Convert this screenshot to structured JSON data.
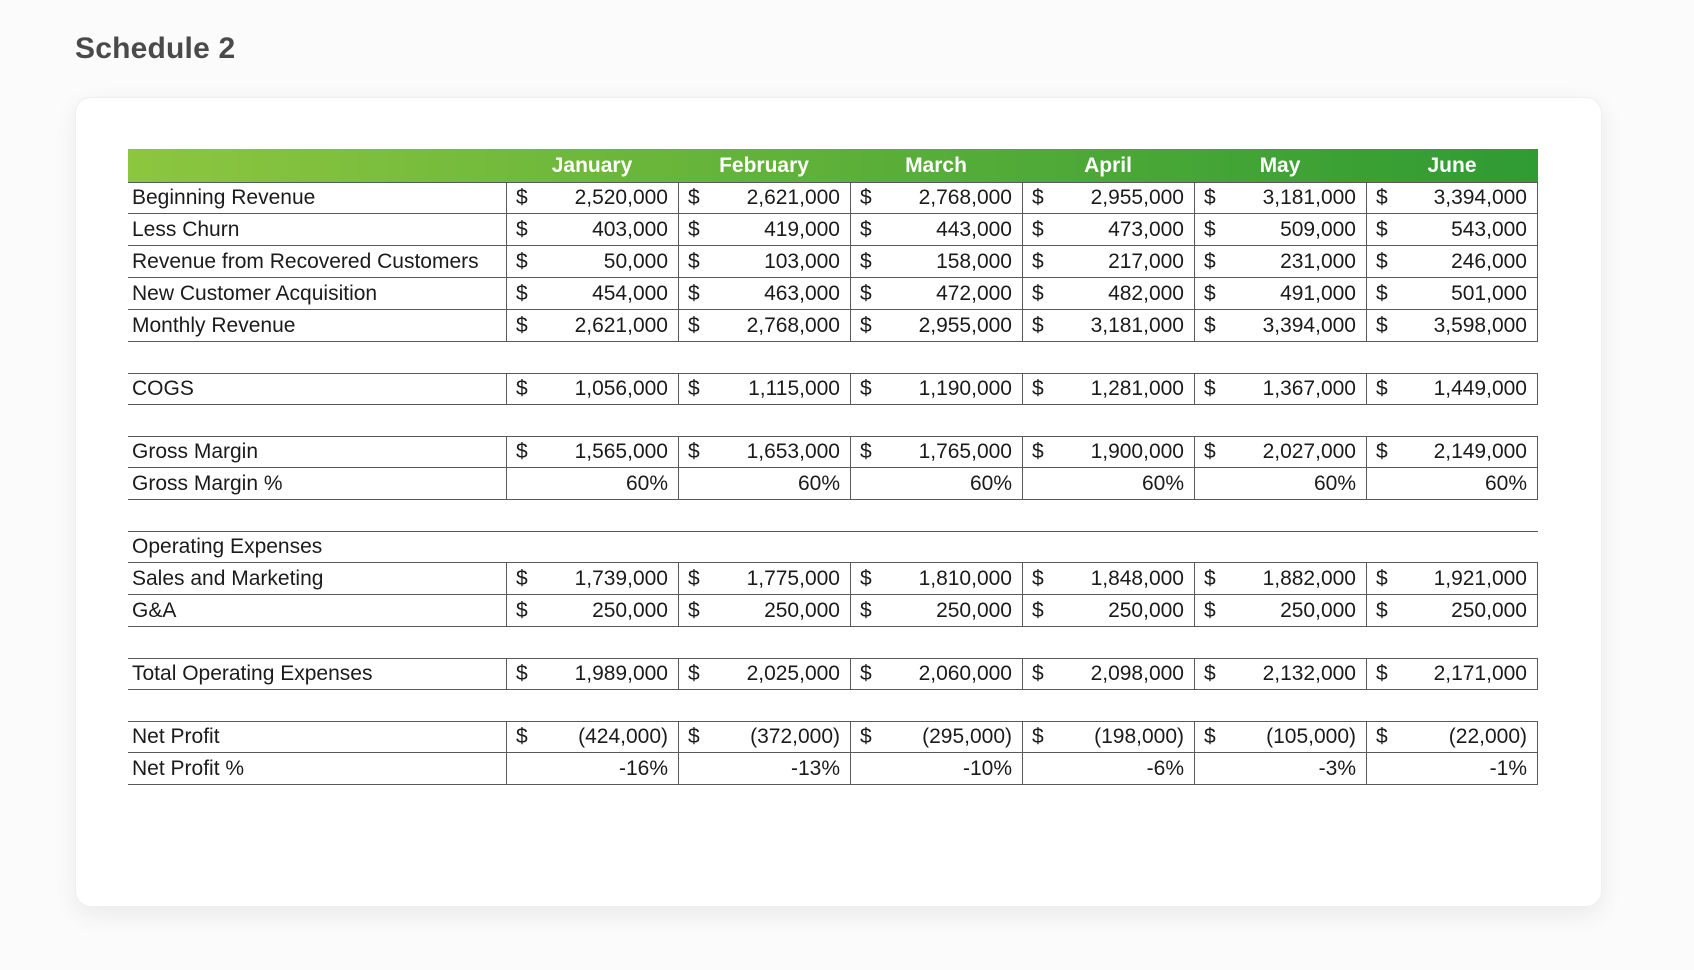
{
  "page": {
    "title": "Schedule 2"
  },
  "table": {
    "currency_symbol": "$",
    "header": {
      "months": [
        "January",
        "February",
        "March",
        "April",
        "May",
        "June"
      ]
    },
    "colors": {
      "header_gradient_left": "#8DC63F",
      "header_gradient_right": "#2F9B33",
      "header_text": "#FFFFFF",
      "border": "#595959",
      "text": "#1B1B1B"
    },
    "rows": [
      {
        "type": "currency",
        "label": "Beginning Revenue",
        "block_start": true,
        "values": [
          "2,520,000",
          "2,621,000",
          "2,768,000",
          "2,955,000",
          "3,181,000",
          "3,394,000"
        ]
      },
      {
        "type": "currency",
        "label": "Less Churn",
        "values": [
          "403,000",
          "419,000",
          "443,000",
          "473,000",
          "509,000",
          "543,000"
        ]
      },
      {
        "type": "currency",
        "label": "Revenue from Recovered Customers",
        "values": [
          "50,000",
          "103,000",
          "158,000",
          "217,000",
          "231,000",
          "246,000"
        ]
      },
      {
        "type": "currency",
        "label": "New Customer Acquisition",
        "values": [
          "454,000",
          "463,000",
          "472,000",
          "482,000",
          "491,000",
          "501,000"
        ]
      },
      {
        "type": "currency",
        "label": "Monthly Revenue",
        "values": [
          "2,621,000",
          "2,768,000",
          "2,955,000",
          "3,181,000",
          "3,394,000",
          "3,598,000"
        ]
      },
      {
        "type": "spacer"
      },
      {
        "type": "currency",
        "label": "COGS",
        "block_start": true,
        "values": [
          "1,056,000",
          "1,115,000",
          "1,190,000",
          "1,281,000",
          "1,367,000",
          "1,449,000"
        ]
      },
      {
        "type": "spacer"
      },
      {
        "type": "currency",
        "label": "Gross Margin",
        "block_start": true,
        "values": [
          "1,565,000",
          "1,653,000",
          "1,765,000",
          "1,900,000",
          "2,027,000",
          "2,149,000"
        ]
      },
      {
        "type": "percent",
        "label": "Gross Margin %",
        "values": [
          "60%",
          "60%",
          "60%",
          "60%",
          "60%",
          "60%"
        ]
      },
      {
        "type": "spacer"
      },
      {
        "type": "section",
        "label": "Operating Expenses",
        "block_start": true
      },
      {
        "type": "currency",
        "label": "Sales and Marketing",
        "values": [
          "1,739,000",
          "1,775,000",
          "1,810,000",
          "1,848,000",
          "1,882,000",
          "1,921,000"
        ]
      },
      {
        "type": "currency",
        "label": "G&A",
        "values": [
          "250,000",
          "250,000",
          "250,000",
          "250,000",
          "250,000",
          "250,000"
        ]
      },
      {
        "type": "spacer"
      },
      {
        "type": "currency",
        "label": "Total Operating Expenses",
        "block_start": true,
        "values": [
          "1,989,000",
          "2,025,000",
          "2,060,000",
          "2,098,000",
          "2,132,000",
          "2,171,000"
        ]
      },
      {
        "type": "spacer"
      },
      {
        "type": "currency",
        "label": "Net Profit",
        "block_start": true,
        "values": [
          "(424,000)",
          "(372,000)",
          "(295,000)",
          "(198,000)",
          "(105,000)",
          "(22,000)"
        ]
      },
      {
        "type": "percent",
        "label": "Net Profit %",
        "values": [
          "-16%",
          "-13%",
          "-10%",
          "-6%",
          "-3%",
          "-1%"
        ]
      }
    ]
  }
}
